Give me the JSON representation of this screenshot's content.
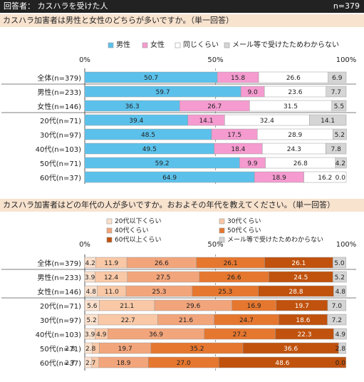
{
  "header": {
    "respondent_label": "回答者： カスハラを受けた人",
    "n_label": "n=379"
  },
  "questions": [
    {
      "text": "カスハラ加害者は男性と女性のどちらが多いですか。（単一回答）"
    },
    {
      "text": "カスハラ加害者はどの年代の人が多いですか。おおよその年代を教えてください。（単一回答）"
    }
  ],
  "chart_data": [
    {
      "type": "bar",
      "orientation": "horizontal",
      "stacked": true,
      "percent": true,
      "xlim": [
        0,
        100
      ],
      "tick_labels": [
        "0%",
        "50%",
        "100%"
      ],
      "legend_position": "top",
      "categories": [
        "全体(n=379)",
        "男性(n=233)",
        "女性(n=146)",
        "20代(n=71)",
        "30代(n=97)",
        "40代(n=103)",
        "50代(n=71)",
        "60代(n=37)"
      ],
      "series": [
        {
          "name": "男性",
          "color": "#5bc1eb",
          "values": [
            50.7,
            59.7,
            36.3,
            39.4,
            48.5,
            49.5,
            59.2,
            64.9
          ]
        },
        {
          "name": "女性",
          "color": "#f59bd0",
          "values": [
            15.8,
            9.0,
            26.7,
            14.1,
            17.5,
            18.4,
            9.9,
            18.9
          ]
        },
        {
          "name": "同じくらい",
          "color": "#ffffff",
          "values": [
            26.6,
            23.6,
            31.5,
            32.4,
            28.9,
            24.3,
            26.8,
            16.2
          ]
        },
        {
          "name": "メール等で受けたためわからない",
          "color": "#d5d5d5",
          "values": [
            6.9,
            7.7,
            5.5,
            14.1,
            5.2,
            7.8,
            4.2,
            0.0
          ]
        }
      ]
    },
    {
      "type": "bar",
      "orientation": "horizontal",
      "stacked": true,
      "percent": true,
      "xlim": [
        0,
        100
      ],
      "tick_labels": [
        "0%",
        "50%",
        "100%"
      ],
      "legend_position": "top",
      "categories": [
        "全体(n=379)",
        "男性(n=233)",
        "女性(n=146)",
        "20代(n=71)",
        "30代(n=97)",
        "40代(n=103)",
        "50代(n=71)",
        "60代(n=37)"
      ],
      "series": [
        {
          "name": "20代以下くらい",
          "color": "#fbe0cc",
          "values": [
            4.2,
            3.9,
            4.8,
            5.6,
            5.2,
            3.9,
            2.8,
            2.7
          ]
        },
        {
          "name": "30代くらい",
          "color": "#f9c8a6",
          "values": [
            11.9,
            12.4,
            11.0,
            21.1,
            22.7,
            4.9,
            2.8,
            2.7
          ]
        },
        {
          "name": "40代くらい",
          "color": "#f2a57b",
          "values": [
            26.6,
            27.5,
            25.3,
            29.6,
            21.6,
            36.9,
            19.7,
            18.9
          ]
        },
        {
          "name": "50代くらい",
          "color": "#e6772f",
          "values": [
            26.1,
            26.6,
            25.3,
            16.9,
            24.7,
            27.2,
            35.2,
            27.0
          ]
        },
        {
          "name": "60代以上くらい",
          "color": "#c0520d",
          "values": [
            26.1,
            24.5,
            28.8,
            19.7,
            18.6,
            22.3,
            36.6,
            48.6
          ]
        },
        {
          "name": "メール等で受けたためわからない",
          "color": "#d5d5d5",
          "values": [
            5.0,
            5.2,
            4.8,
            7.0,
            7.2,
            4.9,
            2.8,
            0.0
          ]
        }
      ]
    }
  ]
}
